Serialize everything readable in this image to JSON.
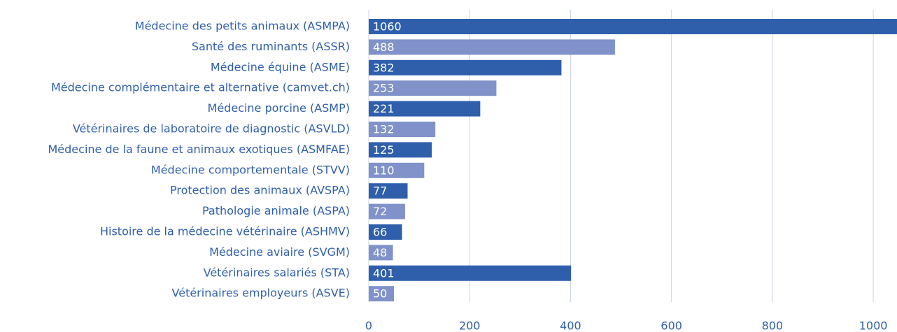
{
  "chart_data": {
    "type": "barh",
    "categories": [
      "Médecine des petits animaux (ASMPA)",
      "Santé des ruminants (ASSR)",
      "Médecine équine (ASME)",
      "Médecine complémentaire et alternative (camvet.ch)",
      "Médecine porcine (ASMP)",
      "Vétérinaires de laboratoire de diagnostic (ASVLD)",
      "Médecine de la faune et animaux exotiques (ASMFAE)",
      "Médecine comportementale (STVV)",
      "Protection des animaux (AVSPA)",
      "Pathologie animale (ASPA)",
      "Histoire de la médecine vétérinaire (ASHMV)",
      "Médecine aviaire (SVGM)",
      "Vétérinaires salariés (STA)",
      "Vétérinaires employeurs (ASVE)"
    ],
    "values": [
      1060,
      488,
      382,
      253,
      221,
      132,
      125,
      110,
      77,
      72,
      66,
      48,
      401,
      50
    ],
    "colors": [
      "#2f5fab",
      "#8092c9",
      "#2f5fab",
      "#8092c9",
      "#2f5fab",
      "#8092c9",
      "#2f5fab",
      "#8092c9",
      "#2f5fab",
      "#8092c9",
      "#2f5fab",
      "#8092c9",
      "#2f5fab",
      "#8092c9"
    ],
    "xlim": [
      0,
      1047
    ],
    "xticks": [
      0,
      200,
      400,
      600,
      800,
      1000
    ],
    "grid": true
  }
}
